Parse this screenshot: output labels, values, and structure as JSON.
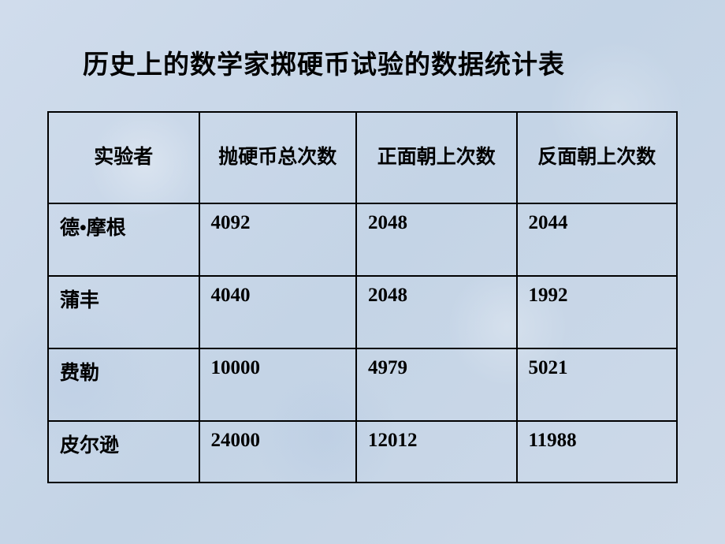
{
  "title": "历史上的数学家掷硬币试验的数据统计表",
  "table": {
    "headers": [
      "实验者",
      "抛硬币总次数",
      "正面朝上次数",
      "反面朝上次数"
    ],
    "rows": [
      [
        "德•摩根",
        "4092",
        "2048",
        "2044"
      ],
      [
        "蒲丰",
        "4040",
        "2048",
        "1992"
      ],
      [
        "费勒",
        "10000",
        "4979",
        "5021"
      ],
      [
        "皮尔逊",
        "24000",
        "12012",
        "11988"
      ]
    ]
  },
  "style": {
    "background_color": "#c8d6e8",
    "border_color": "#000000",
    "text_color": "#000000",
    "title_fontsize": 33,
    "cell_fontsize": 25,
    "font_weight": "bold",
    "col_widths_pct": [
      24,
      25,
      25.5,
      25.5
    ],
    "header_row_height": 116,
    "data_row_height": 92,
    "last_row_height": 78
  }
}
